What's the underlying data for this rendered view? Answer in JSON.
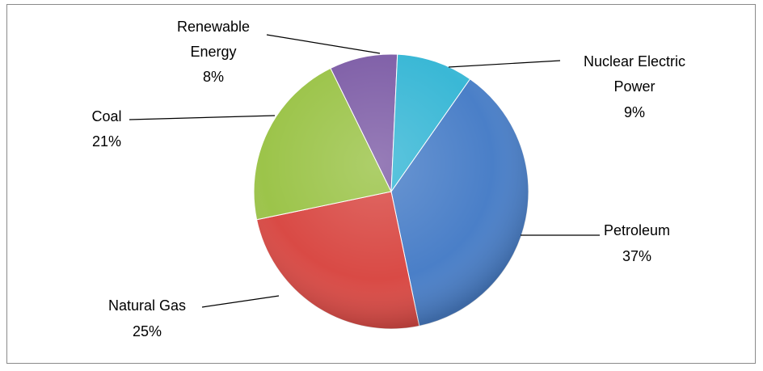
{
  "chart_data": {
    "type": "pie",
    "slices": [
      {
        "label": "Petroleum",
        "value": 37,
        "color": "#4a7fc8"
      },
      {
        "label": "Natural Gas",
        "value": 25,
        "color": "#d94a45"
      },
      {
        "label": "Coal",
        "value": 21,
        "color": "#9cc44a"
      },
      {
        "label": "Renewable Energy",
        "value": 8,
        "color": "#8060a8"
      },
      {
        "label": "Nuclear Electric Power",
        "value": 9,
        "color": "#3ab8d6"
      }
    ],
    "labels": {
      "petroleum": {
        "name": "Petroleum",
        "pct": "37%"
      },
      "natural_gas": {
        "name": "Natural Gas",
        "pct": "25%"
      },
      "coal": {
        "name": "Coal",
        "pct": "21%"
      },
      "renewable": {
        "line1": "Renewable",
        "line2": "Energy",
        "pct": "8%"
      },
      "nuclear": {
        "line1": "Nuclear Electric",
        "line2": "Power",
        "pct": "9%"
      }
    },
    "legend": "none"
  }
}
